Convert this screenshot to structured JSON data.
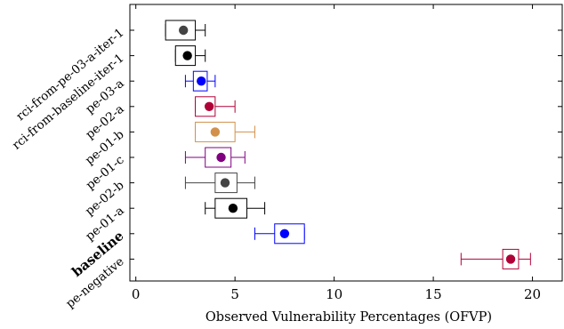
{
  "chart_data": {
    "type": "boxplot",
    "orientation": "horizontal",
    "xlabel": "Observed Vulnerability Percentages (OFVP)",
    "ylabel": "",
    "xlim": [
      -0.3,
      21.5
    ],
    "xticks": [
      0,
      5,
      10,
      15,
      20
    ],
    "grid": false,
    "legend": "none",
    "categories": [
      "rci-from-pe-03-a-iter-1",
      "rci-from-baseline-iter-1",
      "pe-03-a",
      "pe-02-a",
      "pe-01-b",
      "pe-01-c",
      "pe-02-b",
      "pe-01-a",
      "baseline",
      "pe-negative"
    ],
    "bold_categories": [
      "baseline"
    ],
    "series": [
      {
        "category": "rci-from-pe-03-a-iter-1",
        "color": "#000000",
        "marker_color": "#444444",
        "whisker_low": 1.5,
        "q1": 1.5,
        "q3": 3.0,
        "whisker_high": 3.5,
        "mean": 2.4
      },
      {
        "category": "rci-from-baseline-iter-1",
        "color": "#000000",
        "marker_color": "#000000",
        "whisker_low": 2.0,
        "q1": 2.0,
        "q3": 3.0,
        "whisker_high": 3.5,
        "mean": 2.6
      },
      {
        "category": "pe-03-a",
        "color": "#0000ff",
        "marker_color": "#0000ff",
        "whisker_low": 2.5,
        "q1": 2.9,
        "q3": 3.6,
        "whisker_high": 4.0,
        "mean": 3.3
      },
      {
        "category": "pe-02-a",
        "color": "#b00038",
        "marker_color": "#b00038",
        "whisker_low": 3.0,
        "q1": 3.0,
        "q3": 4.0,
        "whisker_high": 5.0,
        "mean": 3.7
      },
      {
        "category": "pe-01-b",
        "color": "#d2904a",
        "marker_color": "#d2904a",
        "whisker_low": 3.0,
        "q1": 3.0,
        "q3": 5.0,
        "whisker_high": 6.0,
        "mean": 4.0
      },
      {
        "category": "pe-01-c",
        "color": "#800080",
        "marker_color": "#800080",
        "whisker_low": 2.5,
        "q1": 3.5,
        "q3": 4.8,
        "whisker_high": 5.5,
        "mean": 4.3
      },
      {
        "category": "pe-02-b",
        "color": "#444444",
        "marker_color": "#444444",
        "whisker_low": 2.5,
        "q1": 4.0,
        "q3": 5.1,
        "whisker_high": 6.0,
        "mean": 4.5
      },
      {
        "category": "pe-01-a",
        "color": "#000000",
        "marker_color": "#000000",
        "whisker_low": 3.5,
        "q1": 4.0,
        "q3": 5.6,
        "whisker_high": 6.5,
        "mean": 4.9
      },
      {
        "category": "baseline",
        "color": "#0000ff",
        "marker_color": "#0000ff",
        "whisker_low": 6.0,
        "q1": 7.0,
        "q3": 8.5,
        "whisker_high": 8.5,
        "mean": 7.5
      },
      {
        "category": "pe-negative",
        "color": "#b00038",
        "marker_color": "#b00038",
        "whisker_low": 16.4,
        "q1": 18.5,
        "q3": 19.3,
        "whisker_high": 19.9,
        "mean": 18.9
      }
    ]
  }
}
